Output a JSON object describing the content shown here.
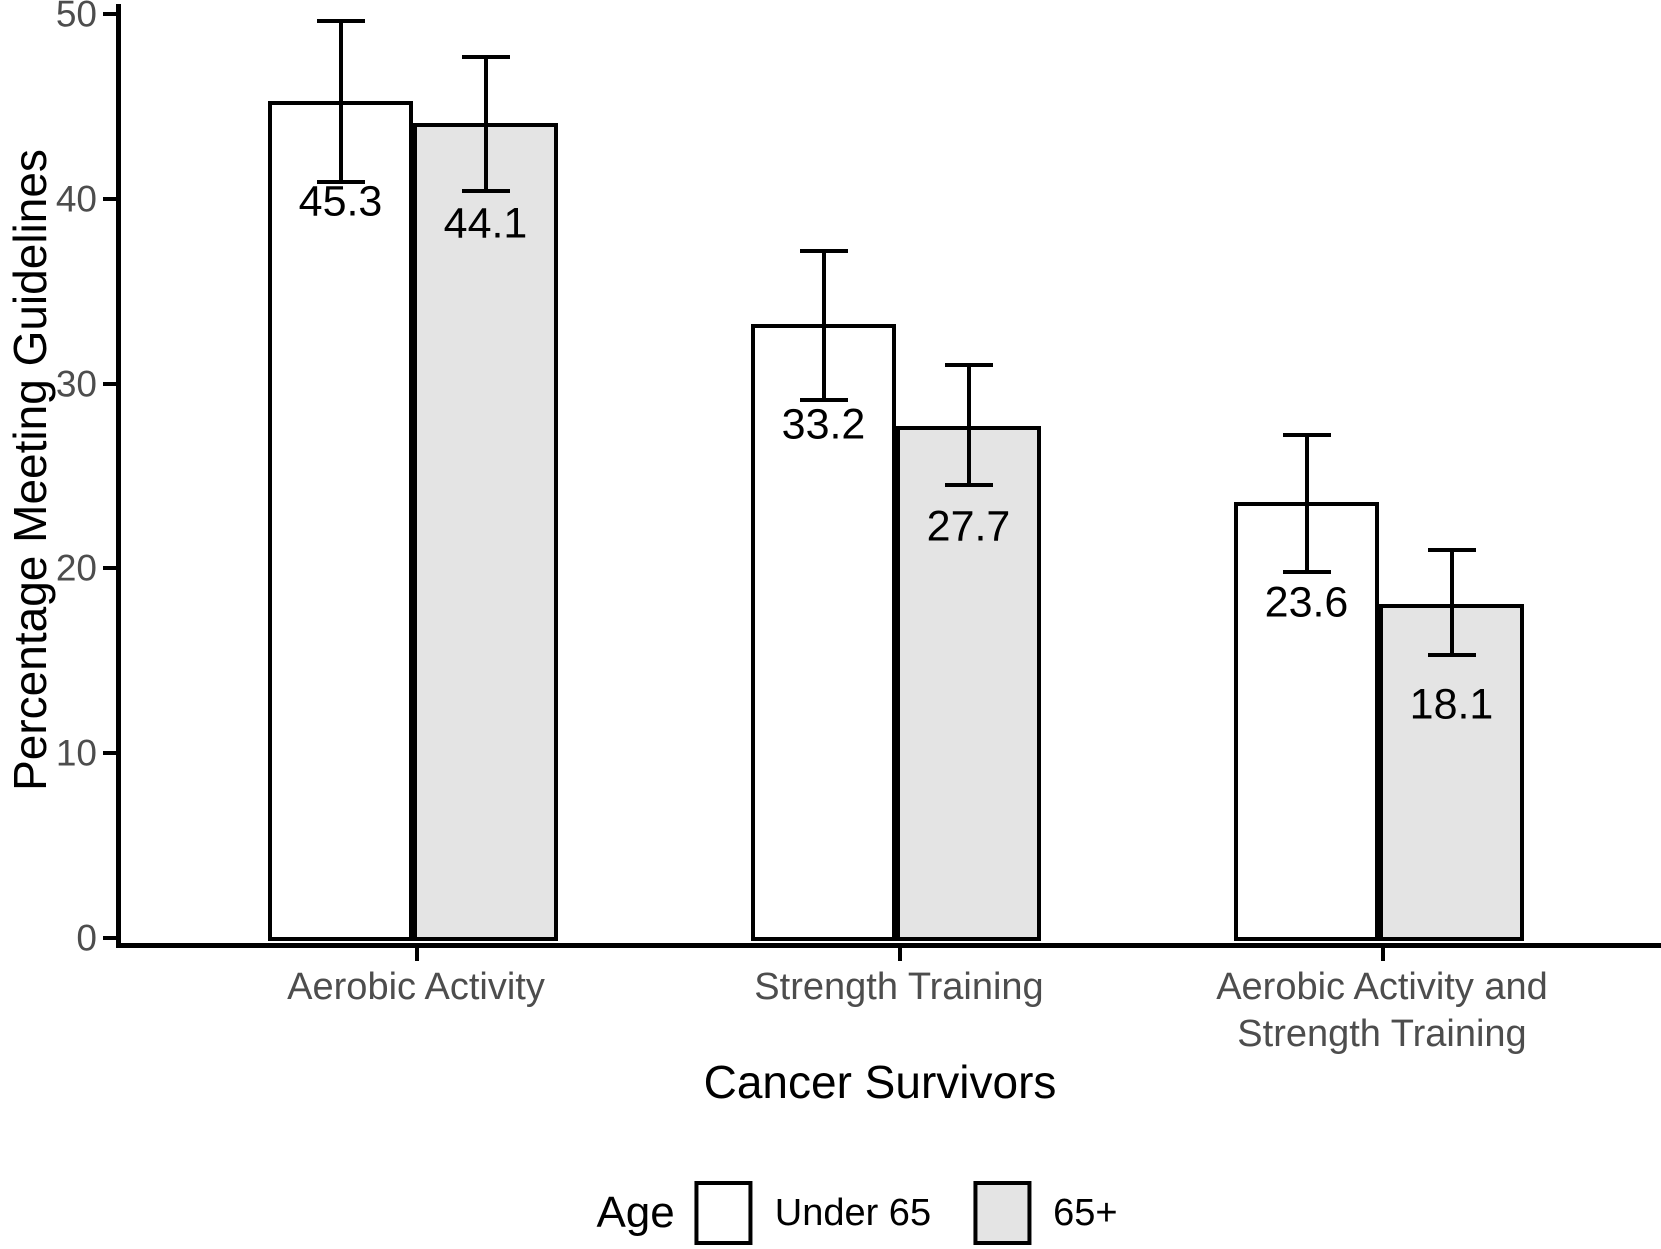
{
  "chart_data": {
    "type": "bar",
    "title": "",
    "xlabel": "Cancer Survivors",
    "ylabel": "Percentage Meeting Guidelines",
    "ylim": [
      0,
      50
    ],
    "yticks": [
      0,
      10,
      20,
      30,
      40,
      50
    ],
    "grid": false,
    "legend_position": "bottom",
    "legend_title": "Age",
    "categories": [
      "Aerobic Activity",
      "Strength Training",
      "Aerobic Activity and Strength Training"
    ],
    "category_label_lines": [
      [
        "Aerobic Activity"
      ],
      [
        "Strength Training"
      ],
      [
        "Aerobic Activity and",
        "Strength Training"
      ]
    ],
    "series": [
      {
        "name": "Under 65",
        "fill": "#ffffff",
        "values": [
          45.3,
          33.2,
          23.6
        ],
        "labels": [
          "45.3",
          "33.2",
          "23.6"
        ],
        "error_low": [
          40.9,
          29.1,
          19.8
        ],
        "error_high": [
          49.6,
          37.2,
          27.2
        ]
      },
      {
        "name": "65+",
        "fill": "#e4e4e4",
        "values": [
          44.1,
          27.7,
          18.1
        ],
        "labels": [
          "44.1",
          "27.7",
          "18.1"
        ],
        "error_low": [
          40.4,
          24.5,
          15.3
        ],
        "error_high": [
          47.7,
          31.0,
          21.0
        ]
      }
    ]
  },
  "colors": {
    "axis_line": "#000000",
    "tick_text": "#4d4d4d",
    "bar_border": "#000000",
    "label_text": "#000000",
    "series_fills": [
      "#ffffff",
      "#e4e4e4"
    ]
  }
}
